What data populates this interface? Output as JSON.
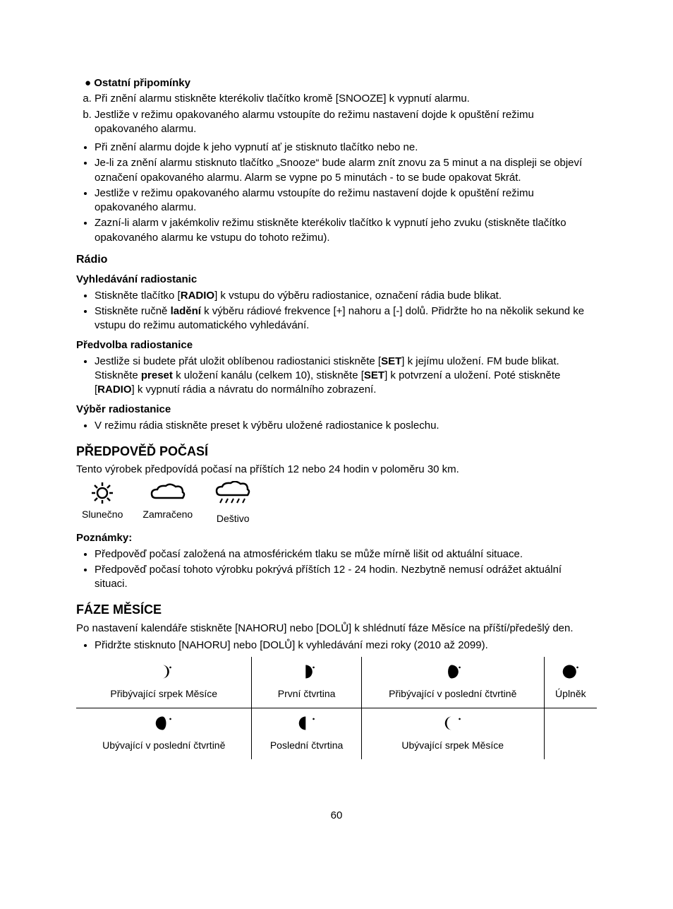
{
  "section_reminders": {
    "bullet": "●",
    "title": "Ostatní připomínky",
    "ol": [
      "Při znění alarmu stiskněte kterékoliv tlačítko kromě [SNOOZE] k vypnutí alarmu.",
      "Jestliže v režimu opakovaného alarmu vstoupíte do režimu nastavení dojde k opuštění režimu opakovaného alarmu."
    ],
    "ul": [
      "Při znění alarmu dojde k jeho vypnutí ať je stisknuto tlačítko nebo ne.",
      "Je-li za znění alarmu stisknuto tlačítko „Snooze“ bude alarm znít znovu za 5 minut a na displeji se objeví označení opakovaného alarmu. Alarm se vypne po 5 minutách - to se bude opakovat 5krát.",
      "Jestliže v režimu opakovaného alarmu vstoupíte do režimu nastavení dojde k opuštění režimu opakovaného alarmu.",
      "Zazní-li alarm v jakémkoliv režimu stiskněte kterékoliv tlačítko k vypnutí jeho zvuku (stiskněte tlačítko opakovaného alarmu ke vstupu do tohoto režimu)."
    ]
  },
  "section_radio": {
    "title": "Rádio",
    "sub1_title": "Vyhledávání radiostanic",
    "sub1_li1": {
      "pre": "Stiskněte tlačítko [",
      "b1": "RADIO",
      "post": "] k vstupu do výběru radiostanice, označení rádia bude blikat."
    },
    "sub1_li2": {
      "pre": "Stiskněte ručně ",
      "b1": "ladění",
      "post": " k výběru rádiové frekvence [+] nahoru a [-] dolů. Přidržte ho na několik sekund ke vstupu do režimu automatického vyhledávání."
    },
    "sub2_title": "Předvolba radiostanice",
    "sub2_li": {
      "t1": "Jestliže si budete přát uložit oblíbenou radiostanici stiskněte [",
      "b1": "SET",
      "t2": "] k jejímu uložení. FM bude blikat. Stiskněte ",
      "b2": "preset",
      "t3": " k uložení kanálu (celkem 10), stiskněte [",
      "b3": "SET",
      "t4": "] k potvrzení a uložení. Poté stiskněte [",
      "b4": "RADIO",
      "t5": "] k vypnutí rádia a návratu do normálního zobrazení."
    },
    "sub3_title": "Výběr radiostanice",
    "sub3_li": "V režimu rádia stiskněte preset k výběru uložené radiostanice k poslechu."
  },
  "section_weather": {
    "title": "PŘEDPOVĚĎ POČASÍ",
    "intro": "Tento výrobek předpovídá počasí na příštích 12 nebo 24 hodin v poloměru 30 km.",
    "icons": [
      {
        "label": "Slunečno",
        "type": "sun"
      },
      {
        "label": "Zamračeno",
        "type": "cloud"
      },
      {
        "label": "Deštivo",
        "type": "rain"
      }
    ],
    "notes_title": "Poznámky:",
    "notes": [
      "Předpověď počasí založená na atmosférickém tlaku se může mírně lišit od aktuální situace.",
      "Předpověď počasí tohoto výrobku pokrývá příštích 12 - 24 hodin. Nezbytně nemusí odrážet aktuální situaci."
    ]
  },
  "section_moon": {
    "title": "FÁZE MĚSÍCE",
    "intro": "Po nastavení kalendáře stiskněte [NAHORU] nebo [DOLŮ] k shlédnutí fáze Měsíce na příští/předešlý den.",
    "note": "Přidržte stisknuto [NAHORU] nebo [DOLŮ] k vyhledávání mezi roky (2010 až 2099).",
    "row1": [
      {
        "label": "Přibývající srpek Měsíce",
        "phase": "waxing-crescent"
      },
      {
        "label": "První čtvrtina",
        "phase": "first-quarter"
      },
      {
        "label": "Přibývající v poslední čtvrtině",
        "phase": "waxing-gibbous"
      },
      {
        "label": "Úplněk",
        "phase": "full"
      }
    ],
    "row2": [
      {
        "label": "Ubývající v poslední čtvrtině",
        "phase": "waning-gibbous"
      },
      {
        "label": "Poslední čtvrtina",
        "phase": "last-quarter"
      },
      {
        "label": "Ubývající srpek Měsíce",
        "phase": "waning-crescent"
      },
      {
        "label": "",
        "phase": ""
      }
    ]
  },
  "page_number": "60"
}
